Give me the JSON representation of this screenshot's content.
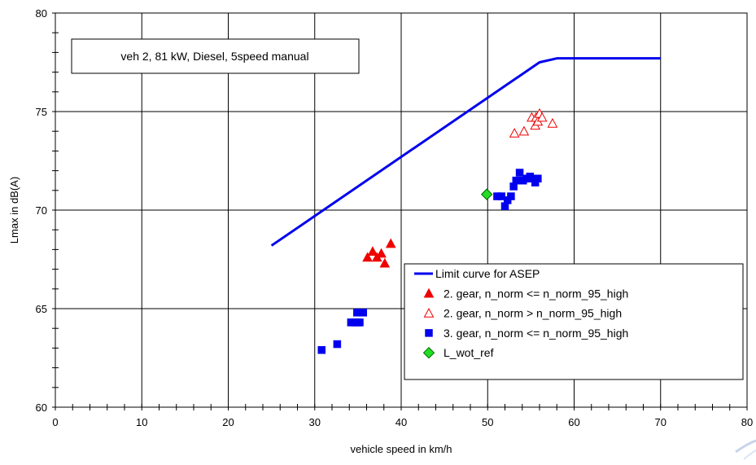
{
  "chart_data": {
    "type": "scatter",
    "xlabel": "vehicle speed in km/h",
    "ylabel": "Lmax in dB(A)",
    "xlim": [
      0,
      80
    ],
    "ylim": [
      60,
      80
    ],
    "x_ticks": [
      0,
      10,
      20,
      30,
      40,
      50,
      60,
      70,
      80
    ],
    "y_ticks": [
      60,
      65,
      70,
      75,
      80
    ],
    "grid": true,
    "legend_position": "bottom-right",
    "annotation": "veh 2, 81 kW, Diesel, 5speed manual",
    "colors": {
      "limit": "#0000ee",
      "gear2": "#ee0000",
      "gear3": "#0000ee",
      "ref_fill": "#22dd22",
      "ref_stroke": "#006600"
    },
    "series": [
      {
        "name": "Limit curve for ASEP",
        "kind": "line",
        "color": "#0000ee",
        "points": [
          [
            25,
            68.2
          ],
          [
            56,
            77.5
          ],
          [
            58,
            77.7
          ],
          [
            70,
            77.7
          ]
        ]
      },
      {
        "name": "2. gear, n_norm <= n_norm_95_high",
        "kind": "filled-triangle",
        "color": "#ee0000",
        "points": [
          [
            36.1,
            67.6
          ],
          [
            36.7,
            67.9
          ],
          [
            37.2,
            67.6
          ],
          [
            37.7,
            67.8
          ],
          [
            38.1,
            67.3
          ],
          [
            38.8,
            68.3
          ]
        ]
      },
      {
        "name": "2. gear, n_norm > n_norm_95_high",
        "kind": "open-triangle",
        "color": "#ee0000",
        "points": [
          [
            53.1,
            73.9
          ],
          [
            54.2,
            74.0
          ],
          [
            55.1,
            74.7
          ],
          [
            55.5,
            74.3
          ],
          [
            55.6,
            74.7
          ],
          [
            55.8,
            74.5
          ],
          [
            56.0,
            74.9
          ],
          [
            56.3,
            74.7
          ],
          [
            57.5,
            74.4
          ]
        ]
      },
      {
        "name": "3. gear, n_norm <= n_norm_95_high",
        "kind": "square",
        "color": "#0000ee",
        "points": [
          [
            30.8,
            62.9
          ],
          [
            32.6,
            63.2
          ],
          [
            34.2,
            64.3
          ],
          [
            34.6,
            64.3
          ],
          [
            34.9,
            64.8
          ],
          [
            35.0,
            64.3
          ],
          [
            35.2,
            64.3
          ],
          [
            35.6,
            64.8
          ],
          [
            51.1,
            70.7
          ],
          [
            51.6,
            70.7
          ],
          [
            52.0,
            70.2
          ],
          [
            52.3,
            70.5
          ],
          [
            52.7,
            70.7
          ],
          [
            53.0,
            71.2
          ],
          [
            53.3,
            71.5
          ],
          [
            53.7,
            71.9
          ],
          [
            54.1,
            71.5
          ],
          [
            54.5,
            71.6
          ],
          [
            54.9,
            71.7
          ],
          [
            55.2,
            71.6
          ],
          [
            55.5,
            71.4
          ],
          [
            55.8,
            71.6
          ]
        ]
      },
      {
        "name": "L_wot_ref",
        "kind": "diamond",
        "color": "#22dd22",
        "points": [
          [
            49.9,
            70.8
          ]
        ]
      }
    ]
  }
}
